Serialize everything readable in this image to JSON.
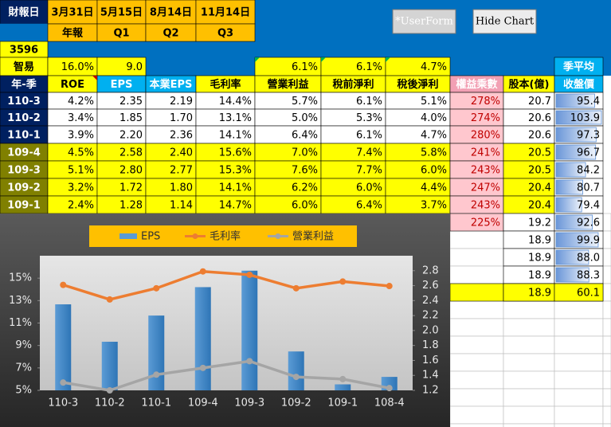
{
  "toolbar": {
    "buttons": [
      "*UserForm",
      "Hide Chart"
    ]
  },
  "sheet": {
    "row1": [
      "財報日",
      "3月31日",
      "5月15日",
      "8月14日",
      "11月14日"
    ],
    "row2": [
      "年報",
      "Q1",
      "Q2",
      "Q3"
    ],
    "code": "3596",
    "row4": {
      "name": "智易",
      "cells": [
        "16.0%",
        "9.0",
        "6.1%",
        "6.1%",
        "4.7%"
      ],
      "avg_label": "季平均"
    },
    "headers": [
      "年-季",
      "ROE",
      "EPS",
      "本業EPS",
      "毛利率",
      "營業利益",
      "稅前淨利",
      "稅後淨利",
      "權益乘數",
      "股本(億)",
      "收盤價"
    ],
    "rows": [
      [
        "110-3",
        "4.2%",
        "2.35",
        "2.19",
        "14.4%",
        "5.7%",
        "6.1%",
        "5.1%",
        "278%",
        "20.7",
        "95.4"
      ],
      [
        "110-2",
        "3.4%",
        "1.85",
        "1.70",
        "13.1%",
        "5.0%",
        "5.3%",
        "4.0%",
        "274%",
        "20.6",
        "103.9"
      ],
      [
        "110-1",
        "3.9%",
        "2.20",
        "2.36",
        "14.1%",
        "6.4%",
        "6.1%",
        "4.7%",
        "280%",
        "20.6",
        "97.3"
      ],
      [
        "109-4",
        "4.5%",
        "2.58",
        "2.40",
        "15.6%",
        "7.0%",
        "7.4%",
        "5.8%",
        "241%",
        "20.5",
        "96.7"
      ],
      [
        "109-3",
        "5.1%",
        "2.80",
        "2.77",
        "15.3%",
        "7.6%",
        "7.7%",
        "6.0%",
        "243%",
        "20.5",
        "84.2"
      ],
      [
        "109-2",
        "3.2%",
        "1.72",
        "1.80",
        "14.1%",
        "6.2%",
        "6.0%",
        "4.4%",
        "247%",
        "20.4",
        "80.7"
      ],
      [
        "109-1",
        "2.4%",
        "1.28",
        "1.14",
        "14.7%",
        "6.0%",
        "6.4%",
        "3.7%",
        "243%",
        "20.4",
        "79.4"
      ]
    ],
    "extra_rows": [
      [
        "225%",
        "19.2",
        "92.6"
      ],
      [
        "18.9",
        "99.9"
      ],
      [
        "18.9",
        "88.0"
      ],
      [
        "18.9",
        "88.3"
      ],
      [
        "18.9",
        "60.1"
      ]
    ]
  },
  "chart_data": {
    "type": "bar_line",
    "categories": [
      "110-3",
      "110-2",
      "110-1",
      "109-4",
      "109-3",
      "109-2",
      "109-1",
      "108-4"
    ],
    "series": [
      {
        "name": "EPS",
        "kind": "bar",
        "axis": "y2",
        "color": "#5b9bd5",
        "values": [
          2.35,
          1.85,
          2.2,
          2.58,
          2.8,
          1.72,
          1.28,
          1.38
        ]
      },
      {
        "name": "毛利率",
        "kind": "line",
        "color": "#ed7d31",
        "values": [
          14.4,
          13.1,
          14.1,
          15.6,
          15.3,
          14.1,
          14.7,
          14.3
        ]
      },
      {
        "name": "營業利益",
        "kind": "line",
        "color": "#a5a5a5",
        "values": [
          5.7,
          5.0,
          6.4,
          7.0,
          7.6,
          6.2,
          6.0,
          5.2
        ]
      }
    ],
    "ylim": [
      5,
      17
    ],
    "yticks": [
      {
        "value": 5,
        "label": "5%"
      },
      {
        "value": 7,
        "label": "7%"
      },
      {
        "value": 9,
        "label": "9%"
      },
      {
        "value": 11,
        "label": "11%"
      },
      {
        "value": 13,
        "label": "13%"
      },
      {
        "value": 15,
        "label": "15%"
      }
    ],
    "y2lim": [
      1.2,
      3.0
    ],
    "y2ticks": [
      1.2,
      1.4,
      1.6,
      1.8,
      {
        "value": 2,
        "label": "2.0"
      },
      2.2,
      2.4,
      2.6,
      2.8
    ],
    "legend": "top"
  }
}
